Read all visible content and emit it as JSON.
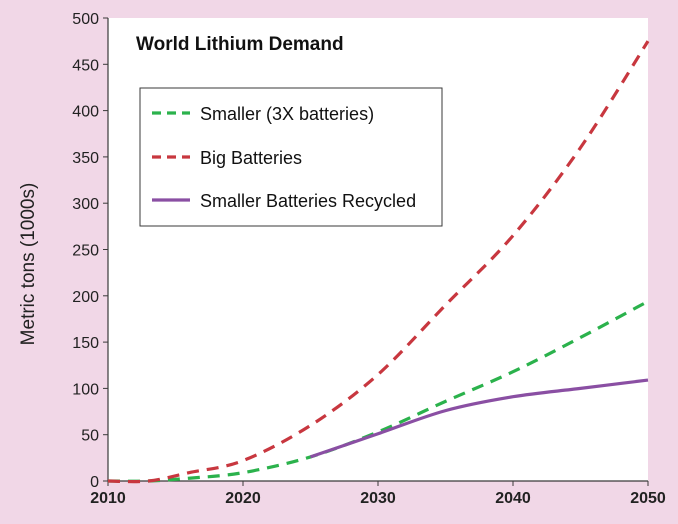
{
  "chart_data": {
    "type": "line",
    "title": "World Lithium Demand",
    "xlabel": "",
    "ylabel": "Metric tons (1000s)",
    "xlim": [
      2010,
      2050
    ],
    "ylim": [
      0,
      500
    ],
    "x_ticks": [
      2010,
      2020,
      2030,
      2040,
      2050
    ],
    "y_ticks": [
      0,
      50,
      100,
      150,
      200,
      250,
      300,
      350,
      400,
      450,
      500
    ],
    "grid": false,
    "legend_position": "top-left",
    "colors": {
      "background": "#f1d7e7",
      "plot_background": "#ffffff",
      "axis": "#3a3a3a"
    },
    "series": [
      {
        "name": "Smaller (3X batteries)",
        "color": "#2bb24c",
        "style": "dashed",
        "x": [
          2010,
          2013,
          2016,
          2020,
          2025,
          2030,
          2035,
          2040,
          2045,
          2050
        ],
        "y": [
          0,
          0,
          3,
          9,
          26,
          53,
          86,
          118,
          155,
          194
        ]
      },
      {
        "name": "Big Batteries",
        "color": "#c8373f",
        "style": "dashed",
        "x": [
          2010,
          2013,
          2016,
          2020,
          2025,
          2030,
          2035,
          2040,
          2045,
          2050
        ],
        "y": [
          0,
          0,
          9,
          22,
          60,
          115,
          190,
          265,
          360,
          475
        ]
      },
      {
        "name": "Smaller Batteries Recycled",
        "color": "#8a4fa3",
        "style": "solid",
        "x": [
          2025,
          2030,
          2035,
          2040,
          2045,
          2050
        ],
        "y": [
          26,
          51,
          76,
          91,
          100,
          109
        ]
      }
    ]
  }
}
